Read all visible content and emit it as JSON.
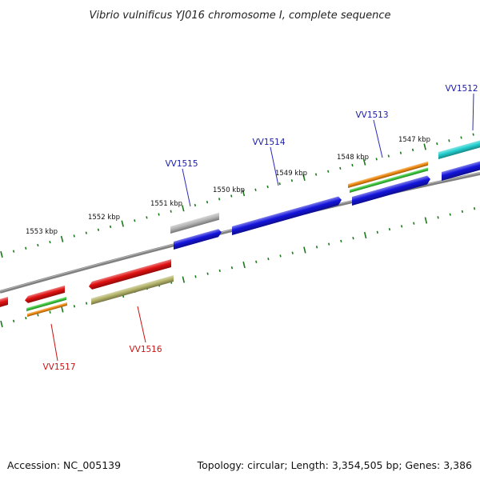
{
  "title": "Vibrio vulnificus YJ016 chromosome I, complete sequence",
  "footer": {
    "accession": "Accession: NC_005139",
    "summary": "Topology: circular; Length: 3,354,505 bp; Genes: 3,386"
  },
  "colors": {
    "background": "#ffffff",
    "backbone": "#808080",
    "tick": "#1a7a1a",
    "label_forward": "#1a1aa8",
    "label_reverse": "#cc1111",
    "leader_forward": "#2a2ac0",
    "leader_reverse": "#cc1111"
  },
  "scale_labels": [
    "1553 kbp",
    "1552 kbp",
    "1551 kbp",
    "1550 kbp",
    "1549 kbp",
    "1548 kbp",
    "1547 kbp"
  ],
  "genes": [
    {
      "id": "VV1512",
      "strand": "forward"
    },
    {
      "id": "VV1513",
      "strand": "forward"
    },
    {
      "id": "VV1514",
      "strand": "forward"
    },
    {
      "id": "VV1515",
      "strand": "forward"
    },
    {
      "id": "VV1516",
      "strand": "reverse"
    },
    {
      "id": "VV1517",
      "strand": "reverse"
    }
  ],
  "feature_colors": {
    "blue": "#1414dc",
    "gray": "#b4b4b4",
    "cyan": "#24cfcf",
    "orange": "#f08a10",
    "green": "#3ac83a",
    "red": "#e01010",
    "olive": "#b4b46a"
  }
}
